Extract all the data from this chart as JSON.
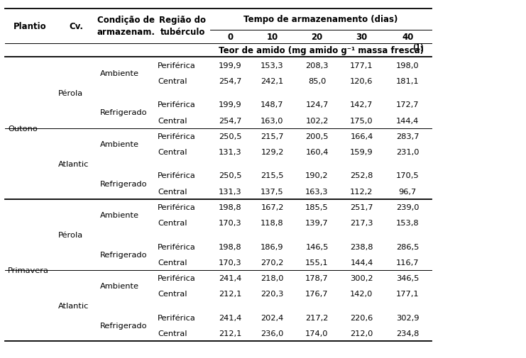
{
  "col_labels": [
    "Plantio",
    "Cv.",
    "Condição de\narmazenam.",
    "Região do\ntubérculo",
    "0",
    "10",
    "20",
    "30",
    "40"
  ],
  "time_header": "Tempo de armazenamento (dias)",
  "teor_header": "Teor de amido (mg amido g⁻¹ massa fresca)",
  "teor_superscript": " (1)",
  "rows": [
    [
      "",
      "",
      "Ambiente",
      "Periférica",
      "199,9",
      "153,3",
      "208,3",
      "177,1",
      "198,0"
    ],
    [
      "",
      "",
      "",
      "Central",
      "254,7",
      "242,1",
      "85,0",
      "120,6",
      "181,1"
    ],
    [
      "",
      "",
      "Refrigerado",
      "Periférica",
      "199,9",
      "148,7",
      "124,7",
      "142,7",
      "172,7"
    ],
    [
      "",
      "",
      "",
      "Central",
      "254,7",
      "163,0",
      "102,2",
      "175,0",
      "144,4"
    ],
    [
      "",
      "",
      "Ambiente",
      "Periférica",
      "250,5",
      "215,7",
      "200,5",
      "166,4",
      "283,7"
    ],
    [
      "",
      "",
      "",
      "Central",
      "131,3",
      "129,2",
      "160,4",
      "159,9",
      "231,0"
    ],
    [
      "",
      "",
      "Refrigerado",
      "Periférica",
      "250,5",
      "215,5",
      "190,2",
      "252,8",
      "170,5"
    ],
    [
      "",
      "",
      "",
      "Central",
      "131,3",
      "137,5",
      "163,3",
      "112,2",
      "96,7"
    ],
    [
      "",
      "",
      "Ambiente",
      "Periférica",
      "198,8",
      "167,2",
      "185,5",
      "251,7",
      "239,0"
    ],
    [
      "",
      "",
      "",
      "Central",
      "170,3",
      "118,8",
      "139,7",
      "217,3",
      "153,8"
    ],
    [
      "",
      "",
      "Refrigerado",
      "Periférica",
      "198,8",
      "186,9",
      "146,5",
      "238,8",
      "286,5"
    ],
    [
      "",
      "",
      "",
      "Central",
      "170,3",
      "270,2",
      "155,1",
      "144,4",
      "116,7"
    ],
    [
      "",
      "",
      "Ambiente",
      "Periférica",
      "241,4",
      "218,0",
      "178,7",
      "300,2",
      "346,5"
    ],
    [
      "",
      "",
      "",
      "Central",
      "212,1",
      "220,3",
      "176,7",
      "142,0",
      "177,1"
    ],
    [
      "",
      "",
      "Refrigerado",
      "Periférica",
      "241,4",
      "202,4",
      "217,2",
      "220,6",
      "302,9"
    ],
    [
      "",
      "",
      "",
      "Central",
      "212,1",
      "236,0",
      "174,0",
      "212,0",
      "234,8"
    ]
  ],
  "plantio_spans": [
    {
      "label": "Outono",
      "rows": [
        0,
        7
      ]
    },
    {
      "label": "Primavera",
      "rows": [
        8,
        15
      ]
    }
  ],
  "cv_spans": [
    {
      "label": "Pérola",
      "rows": [
        0,
        3
      ],
      "label_row": 1
    },
    {
      "label": "Atlantic",
      "rows": [
        4,
        7
      ],
      "label_row": 5
    },
    {
      "label": "Pérola",
      "rows": [
        8,
        11
      ],
      "label_row": 9
    },
    {
      "label": "Atlantic",
      "rows": [
        12,
        15
      ],
      "label_row": 13
    }
  ],
  "cond_spans": [
    {
      "label": "Ambiente",
      "rows": [
        0,
        1
      ]
    },
    {
      "label": "Refrigerado",
      "rows": [
        2,
        3
      ]
    },
    {
      "label": "Ambiente",
      "rows": [
        4,
        5
      ]
    },
    {
      "label": "Refrigerado",
      "rows": [
        6,
        7
      ]
    },
    {
      "label": "Ambiente",
      "rows": [
        8,
        9
      ]
    },
    {
      "label": "Refrigerado",
      "rows": [
        10,
        11
      ]
    },
    {
      "label": "Ambiente",
      "rows": [
        12,
        13
      ]
    },
    {
      "label": "Refrigerado",
      "rows": [
        14,
        15
      ]
    }
  ],
  "thick_lines_after": [
    7
  ],
  "thin_lines_after": [
    3,
    11
  ],
  "bg_color": "#ffffff",
  "text_color": "#000000",
  "font_size": 8.2,
  "header_font_size": 8.5
}
